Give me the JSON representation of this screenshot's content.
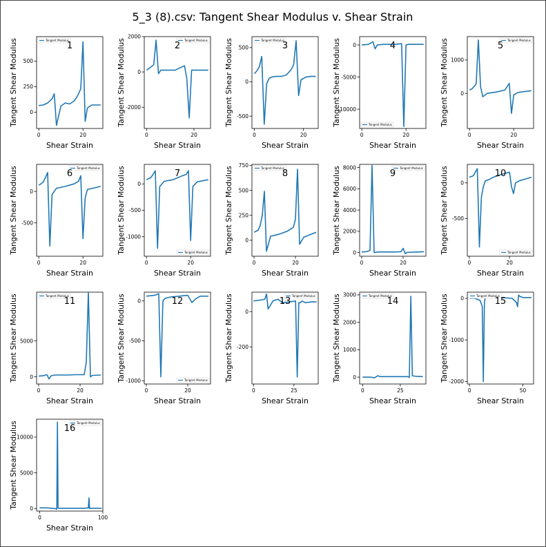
{
  "figure": {
    "title": "5_3 (8).csv: Tangent Shear Modulus v. Shear Strain"
  },
  "chart_data": [
    {
      "type": "line",
      "panel_label": "1",
      "xlabel": "Shear Strain",
      "ylabel": "Tangent Shear Modulus",
      "legend": "Tangent Modulus",
      "legend_loc": "upper left",
      "color": "#1f77b4",
      "xlim": [
        -1,
        29
      ],
      "ylim": [
        -160,
        740
      ],
      "xticks": [
        0,
        20
      ],
      "yticks": [
        0,
        250,
        500
      ],
      "x": [
        0,
        2,
        4,
        6,
        7,
        8,
        10,
        12,
        14,
        16,
        17,
        18,
        19,
        20,
        21,
        22,
        24,
        26,
        28
      ],
      "y": [
        65,
        70,
        90,
        130,
        180,
        -130,
        60,
        90,
        80,
        110,
        140,
        180,
        230,
        690,
        -90,
        40,
        70,
        70,
        70
      ]
    },
    {
      "type": "line",
      "panel_label": "2",
      "xlabel": "Shear Strain",
      "ylabel": "Tangent Shear Modulus",
      "legend": "Tangent Modulus",
      "legend_loc": "upper right",
      "color": "#1f77b4",
      "xlim": [
        -1,
        27
      ],
      "ylim": [
        -3200,
        2000
      ],
      "xticks": [
        0,
        20
      ],
      "yticks": [
        -2000,
        0,
        2000
      ],
      "x": [
        0,
        3,
        4,
        5,
        6,
        8,
        12,
        16,
        17,
        18,
        19,
        21,
        26
      ],
      "y": [
        100,
        400,
        1800,
        -100,
        100,
        100,
        100,
        350,
        -400,
        -2600,
        100,
        100,
        100
      ]
    },
    {
      "type": "line",
      "panel_label": "3",
      "xlabel": "Shear Strain",
      "ylabel": "Tangent Shear Modulus",
      "legend": "Tangent Modulus",
      "legend_loc": "upper left",
      "color": "#1f77b4",
      "xlim": [
        -1,
        26
      ],
      "ylim": [
        -680,
        660
      ],
      "xticks": [
        0,
        20
      ],
      "yticks": [
        -500,
        0,
        500
      ],
      "x": [
        0,
        1,
        2,
        3,
        4,
        5,
        6,
        7,
        9,
        11,
        13,
        15,
        16,
        17,
        18,
        19,
        21,
        23,
        25
      ],
      "y": [
        120,
        160,
        220,
        370,
        -620,
        -30,
        50,
        70,
        80,
        80,
        100,
        180,
        250,
        600,
        -200,
        30,
        70,
        80,
        80
      ]
    },
    {
      "type": "line",
      "panel_label": "4",
      "xlabel": "Shear Strain",
      "ylabel": "Tangent Shear Modulus",
      "legend": "Tangent Modulus",
      "legend_loc": "lower left",
      "color": "#1f77b4",
      "xlim": [
        -1,
        29
      ],
      "ylim": [
        -13000,
        1300
      ],
      "xticks": [
        0,
        20
      ],
      "yticks": [
        -10000,
        -5000,
        0
      ],
      "x": [
        0,
        3,
        5,
        6,
        7,
        10,
        15,
        18,
        19,
        20,
        21,
        24,
        28
      ],
      "y": [
        0,
        100,
        500,
        -600,
        0,
        100,
        100,
        200,
        -12700,
        0,
        100,
        100,
        100
      ]
    },
    {
      "type": "line",
      "panel_label": "5",
      "xlabel": "Shear Strain",
      "ylabel": "Tangent Shear Modulus",
      "legend": "Tangent Modulus",
      "legend_loc": "upper right",
      "color": "#1f77b4",
      "xlim": [
        -1,
        29
      ],
      "ylim": [
        -1050,
        1700
      ],
      "xticks": [
        0,
        20
      ],
      "yticks": [
        0,
        1000
      ],
      "x": [
        0,
        1,
        2,
        3,
        4,
        5,
        6,
        8,
        12,
        16,
        17,
        18,
        19,
        20,
        22,
        28
      ],
      "y": [
        100,
        130,
        200,
        280,
        1600,
        200,
        -100,
        0,
        40,
        100,
        200,
        300,
        -600,
        -50,
        30,
        80
      ]
    },
    {
      "type": "line",
      "panel_label": "6",
      "xlabel": "Shear Strain",
      "ylabel": "Tangent Shear Modulus",
      "legend": "Tangent Modulus",
      "legend_loc": "upper right",
      "color": "#1f77b4",
      "xlim": [
        -1,
        29
      ],
      "ylim": [
        -1030,
        430
      ],
      "xticks": [
        0,
        20
      ],
      "yticks": [
        -500,
        0
      ],
      "x": [
        0,
        1,
        2,
        3,
        4,
        5,
        6,
        8,
        12,
        16,
        18,
        19,
        20,
        21,
        22,
        28
      ],
      "y": [
        100,
        120,
        150,
        220,
        300,
        -870,
        -50,
        50,
        80,
        120,
        160,
        250,
        -750,
        -100,
        30,
        80
      ]
    },
    {
      "type": "line",
      "panel_label": "7",
      "xlabel": "Shear Strain",
      "ylabel": "Tangent Shear Modulus",
      "legend": "Tangent Modulus",
      "legend_loc": "lower right",
      "color": "#1f77b4",
      "xlim": [
        -1,
        29
      ],
      "ylim": [
        -1370,
        370
      ],
      "xticks": [
        0,
        20
      ],
      "yticks": [
        -1000,
        -500,
        0
      ],
      "x": [
        0,
        2,
        3,
        4,
        5,
        6,
        8,
        12,
        16,
        18,
        19,
        20,
        21,
        23,
        28
      ],
      "y": [
        80,
        120,
        180,
        250,
        -1220,
        -50,
        50,
        80,
        150,
        180,
        250,
        -1070,
        -50,
        40,
        80
      ]
    },
    {
      "type": "line",
      "panel_label": "8",
      "xlabel": "Shear Strain",
      "ylabel": "Tangent Shear Modulus",
      "legend": "Tangent Modulus",
      "legend_loc": "upper left",
      "color": "#1f77b4",
      "xlim": [
        -1,
        31
      ],
      "ylim": [
        -160,
        760
      ],
      "xticks": [
        0,
        20
      ],
      "yticks": [
        0,
        250,
        500,
        750
      ],
      "x": [
        0,
        2,
        3,
        4,
        5,
        6,
        8,
        12,
        16,
        19,
        20,
        21,
        22,
        24,
        30
      ],
      "y": [
        80,
        100,
        150,
        250,
        490,
        -110,
        40,
        60,
        90,
        130,
        210,
        710,
        -40,
        30,
        80
      ]
    },
    {
      "type": "line",
      "panel_label": "9",
      "xlabel": "Shear Strain",
      "ylabel": "Tangent Shear Modulus",
      "legend": "Tangent Modulus",
      "legend_loc": "upper right",
      "color": "#1f77b4",
      "xlim": [
        -1,
        31
      ],
      "ylim": [
        -350,
        8300
      ],
      "xticks": [
        0,
        20
      ],
      "yticks": [
        0,
        2000,
        4000,
        6000,
        8000
      ],
      "x": [
        0,
        2,
        3,
        4,
        5,
        6,
        8,
        12,
        16,
        19,
        20,
        21,
        22,
        24,
        30
      ],
      "y": [
        50,
        80,
        120,
        200,
        8200,
        0,
        50,
        50,
        50,
        80,
        400,
        -100,
        20,
        30,
        80
      ]
    },
    {
      "type": "line",
      "panel_label": "10",
      "xlabel": "Shear Strain",
      "ylabel": "Tangent Shear Modulus",
      "legend": "Tangent Modulus",
      "legend_loc": "lower right",
      "color": "#1f77b4",
      "xlim": [
        -1,
        32
      ],
      "ylim": [
        -1030,
        260
      ],
      "xticks": [
        0,
        20
      ],
      "yticks": [
        -500,
        0
      ],
      "x": [
        0,
        2,
        3,
        4,
        5,
        6,
        7,
        8,
        10,
        12,
        16,
        20,
        21,
        22,
        23,
        25,
        31
      ],
      "y": [
        80,
        100,
        150,
        200,
        -900,
        -200,
        -50,
        30,
        50,
        80,
        120,
        150,
        -50,
        -150,
        0,
        30,
        80
      ]
    },
    {
      "type": "line",
      "panel_label": "11",
      "xlabel": "Shear Strain",
      "ylabel": "Tangent Shear Modulus",
      "legend": "Tangent Modulus",
      "legend_loc": "upper left",
      "color": "#1f77b4",
      "xlim": [
        -1,
        31
      ],
      "ylim": [
        -1000,
        11800
      ],
      "xticks": [
        0,
        20
      ],
      "yticks": [
        0,
        5000
      ],
      "x": [
        0,
        2,
        4,
        5,
        6,
        7,
        8,
        10,
        14,
        18,
        22,
        23,
        24,
        25,
        26,
        30
      ],
      "y": [
        100,
        150,
        300,
        -300,
        150,
        200,
        250,
        250,
        250,
        300,
        300,
        2000,
        11800,
        0,
        200,
        250
      ]
    },
    {
      "type": "line",
      "panel_label": "12",
      "xlabel": "Shear Strain",
      "ylabel": "Tangent Shear Modulus",
      "legend": "Tangent Modulus",
      "legend_loc": "lower right",
      "color": "#1f77b4",
      "xlim": [
        -1,
        31
      ],
      "ylim": [
        -1040,
        110
      ],
      "xticks": [
        0,
        20
      ],
      "yticks": [
        -1000,
        -500,
        0
      ],
      "x": [
        0,
        4,
        6,
        7,
        8,
        9,
        10,
        12,
        16,
        20,
        22,
        24,
        26,
        30
      ],
      "y": [
        60,
        70,
        90,
        -950,
        0,
        30,
        40,
        50,
        60,
        70,
        -20,
        30,
        60,
        60
      ]
    },
    {
      "type": "line",
      "panel_label": "13",
      "xlabel": "Shear Strain",
      "ylabel": "Tangent Shear Modulus",
      "legend": "Tangent Modulus",
      "legend_loc": "upper right",
      "color": "#1f77b4",
      "xlim": [
        -1,
        40
      ],
      "ylim": [
        -410,
        110
      ],
      "xticks": [
        0,
        25
      ],
      "yticks": [
        -200,
        0
      ],
      "x": [
        0,
        4,
        7,
        8,
        9,
        10,
        12,
        15,
        18,
        22,
        26,
        27,
        28,
        29,
        30,
        32,
        36,
        39
      ],
      "y": [
        60,
        65,
        70,
        100,
        15,
        30,
        60,
        70,
        50,
        55,
        60,
        -370,
        50,
        50,
        60,
        50,
        55,
        55
      ]
    },
    {
      "type": "line",
      "panel_label": "14",
      "xlabel": "Shear Strain",
      "ylabel": "Tangent Shear Modulus",
      "legend": "Tangent Modulus",
      "legend_loc": "upper left",
      "color": "#1f77b4",
      "xlim": [
        -2,
        42
      ],
      "ylim": [
        -250,
        3100
      ],
      "xticks": [
        0,
        25
      ],
      "yticks": [
        0,
        1000,
        2000,
        3000
      ],
      "x": [
        0,
        5,
        8,
        10,
        12,
        15,
        20,
        25,
        30,
        31,
        32,
        33,
        34,
        36,
        40
      ],
      "y": [
        0,
        0,
        -20,
        50,
        20,
        20,
        20,
        20,
        20,
        -10,
        2950,
        50,
        40,
        30,
        20
      ]
    },
    {
      "type": "line",
      "panel_label": "15",
      "xlabel": "Shear Strain",
      "ylabel": "Tangent Shear Modulus",
      "legend": "Tangent Modulus",
      "legend_loc": "upper left",
      "color": "#1f77b4",
      "xlim": [
        -2,
        60
      ],
      "ylim": [
        -2060,
        150
      ],
      "xticks": [
        0,
        50
      ],
      "yticks": [
        -2000,
        -1000,
        0
      ],
      "x": [
        0,
        5,
        10,
        12,
        13,
        14,
        15,
        20,
        30,
        40,
        44,
        45,
        46,
        47,
        50,
        58
      ],
      "y": [
        0,
        0,
        -50,
        -200,
        -2000,
        -100,
        50,
        30,
        20,
        0,
        -100,
        -200,
        80,
        50,
        20,
        20
      ]
    },
    {
      "type": "line",
      "panel_label": "16",
      "xlabel": "Shear Strain",
      "ylabel": "Tangent Shear Modulus",
      "legend": "Tangent Modulus",
      "legend_loc": "upper right",
      "color": "#1f77b4",
      "xlim": [
        -5,
        100
      ],
      "ylim": [
        -350,
        12500
      ],
      "xticks": [
        0,
        100
      ],
      "yticks": [
        0,
        5000,
        10000
      ],
      "x": [
        0,
        10,
        20,
        25,
        27,
        28,
        29,
        30,
        40,
        50,
        60,
        70,
        77,
        78,
        79,
        80,
        85,
        98
      ],
      "y": [
        100,
        100,
        50,
        0,
        -100,
        12100,
        100,
        50,
        50,
        50,
        50,
        50,
        100,
        1500,
        0,
        50,
        50,
        50
      ]
    }
  ]
}
